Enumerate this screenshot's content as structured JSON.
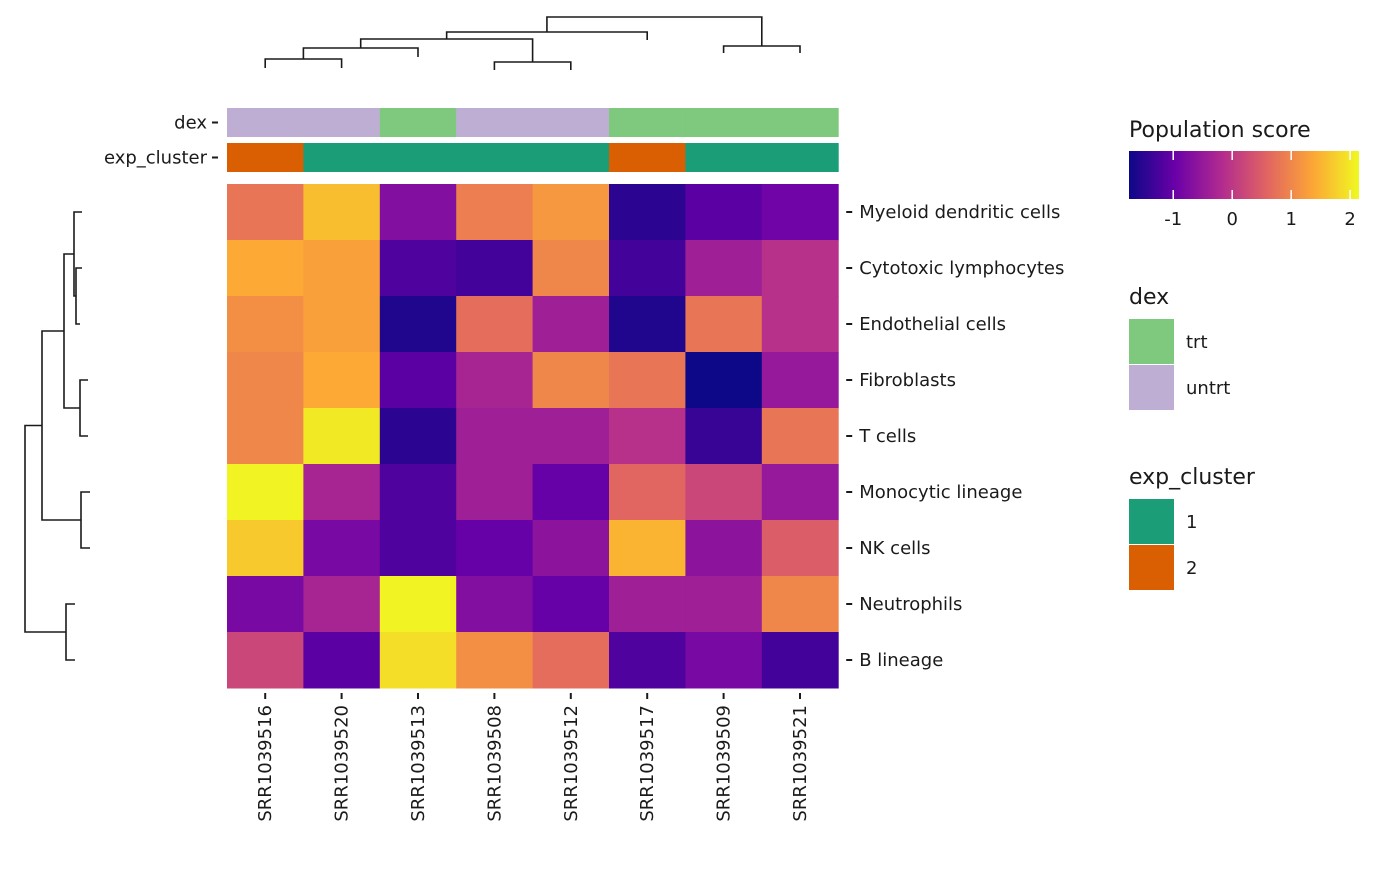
{
  "chart_data": {
    "type": "heatmap",
    "columns": [
      "SRR1039516",
      "SRR1039520",
      "SRR1039513",
      "SRR1039508",
      "SRR1039512",
      "SRR1039517",
      "SRR1039509",
      "SRR1039521"
    ],
    "rows": [
      "Myeloid dendritic cells",
      "Cytotoxic lymphocytes",
      "Endothelial cells",
      "Fibroblasts",
      "T cells",
      "Monocytic lineage",
      "NK cells",
      "Neutrophils",
      "B lineage"
    ],
    "values": [
      [
        0.8,
        1.6,
        -0.7,
        0.9,
        1.2,
        -1.5,
        -1.1,
        -0.9
      ],
      [
        1.4,
        1.3,
        -1.2,
        -1.3,
        1.0,
        -1.3,
        -0.4,
        -0.1
      ],
      [
        1.1,
        1.3,
        -1.6,
        0.7,
        -0.4,
        -1.6,
        0.8,
        -0.1
      ],
      [
        1.0,
        1.4,
        -1.1,
        -0.3,
        1.0,
        0.8,
        -1.8,
        -0.5
      ],
      [
        1.0,
        2.0,
        -1.5,
        -0.4,
        -0.4,
        -0.1,
        -1.4,
        0.8
      ],
      [
        2.1,
        -0.3,
        -1.2,
        -0.4,
        -1.0,
        0.6,
        0.2,
        -0.5
      ],
      [
        1.7,
        -0.8,
        -1.2,
        -1.0,
        -0.6,
        1.5,
        -0.6,
        0.5
      ],
      [
        -0.8,
        -0.3,
        2.1,
        -0.7,
        -1.0,
        -0.4,
        -0.4,
        1.0
      ],
      [
        0.2,
        -1.1,
        1.9,
        1.1,
        0.7,
        -1.2,
        -0.8,
        -1.3
      ]
    ],
    "color_scale": {
      "title": "Population score",
      "range": [
        -1.75,
        2.15
      ],
      "ticks": [
        -1,
        0,
        1,
        2
      ],
      "palette": "plasma",
      "stops": [
        "#0d0887",
        "#6a00a8",
        "#b12a90",
        "#e16462",
        "#fca636",
        "#f0f921"
      ]
    },
    "annotations": [
      {
        "name": "dex",
        "values": [
          "untrt",
          "untrt",
          "trt",
          "untrt",
          "untrt",
          "trt",
          "trt",
          "trt"
        ],
        "legend": [
          {
            "label": "trt",
            "color": "#7fc97f"
          },
          {
            "label": "untrt",
            "color": "#beaed4"
          }
        ]
      },
      {
        "name": "exp_cluster",
        "values": [
          "2",
          "1",
          "1",
          "1",
          "1",
          "2",
          "1",
          "1"
        ],
        "legend": [
          {
            "label": "1",
            "color": "#1b9e77"
          },
          {
            "label": "2",
            "color": "#d95f02"
          }
        ]
      }
    ],
    "column_dendrogram": [
      [
        "SRR1039516",
        "SRR1039520"
      ],
      "SRR1039513",
      [
        "SRR1039508",
        "SRR1039512"
      ],
      "SRR1039517",
      [
        "SRR1039509",
        "SRR1039521"
      ]
    ],
    "row_dendrogram": [
      [
        "Myeloid dendritic cells",
        "Cytotoxic lymphocytes",
        "Endothelial cells"
      ],
      [
        "Fibroblasts",
        "T cells"
      ],
      [
        "Monocytic lineage",
        "NK cells"
      ],
      [
        "Neutrophils",
        "B lineage"
      ]
    ],
    "legend_position": "right"
  }
}
